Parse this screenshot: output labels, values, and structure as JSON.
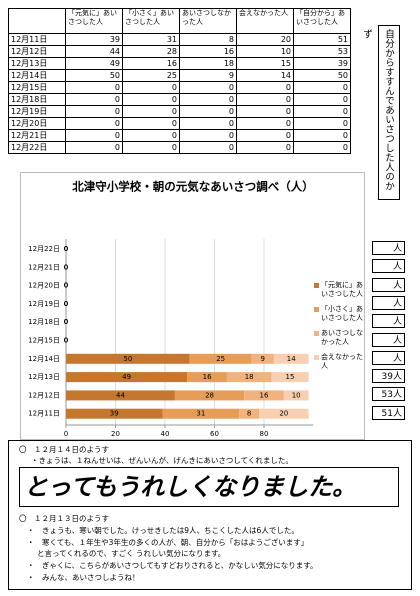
{
  "table": {
    "header": [
      "",
      "「元気に」あいさつした人",
      "「小さく」あいさつした人",
      "あいさつしなかった人",
      "会えなかった人",
      "「自分から」あいさつした人"
    ],
    "rows": [
      [
        "12月11日",
        39,
        31,
        8,
        20,
        51
      ],
      [
        "12月12日",
        44,
        28,
        16,
        10,
        53
      ],
      [
        "12月13日",
        49,
        16,
        18,
        15,
        39
      ],
      [
        "12月14日",
        50,
        25,
        9,
        14,
        50
      ],
      [
        "12月15日",
        0,
        0,
        0,
        0,
        0
      ],
      [
        "12月18日",
        0,
        0,
        0,
        0,
        0
      ],
      [
        "12月19日",
        0,
        0,
        0,
        0,
        0
      ],
      [
        "12月20日",
        0,
        0,
        0,
        0,
        0
      ],
      [
        "12月21日",
        0,
        0,
        0,
        0,
        0
      ],
      [
        "12月22日",
        0,
        0,
        0,
        0,
        0
      ]
    ]
  },
  "side_note": "自分からすすんであいさつした人のかず",
  "chart_data": {
    "type": "bar",
    "orientation": "horizontal",
    "stacked": true,
    "title": "北津守小学校・朝の元気なあいさつ調べ（人）",
    "categories": [
      "12月11日",
      "12月12日",
      "12月13日",
      "12月14日",
      "12月15日",
      "12月18日",
      "12月19日",
      "12月20日",
      "12月21日",
      "12月22日"
    ],
    "series": [
      {
        "name": "「元気に」あいさつした人",
        "color": "#c5772f",
        "values": [
          39,
          44,
          49,
          50,
          0,
          0,
          0,
          0,
          0,
          0
        ]
      },
      {
        "name": "「小さく」あいさつした人",
        "color": "#e69d58",
        "values": [
          31,
          28,
          16,
          25,
          0,
          0,
          0,
          0,
          0,
          0
        ]
      },
      {
        "name": "あいさつしなかった人",
        "color": "#f2b27e",
        "values": [
          8,
          16,
          18,
          9,
          0,
          0,
          0,
          0,
          0,
          0
        ]
      },
      {
        "name": "会えなかった人",
        "color": "#f8cfb0",
        "values": [
          20,
          10,
          15,
          14,
          0,
          0,
          0,
          0,
          0,
          0
        ]
      }
    ],
    "xlim": [
      0,
      100
    ],
    "xticks": [
      0,
      20,
      40,
      60,
      80
    ],
    "grid": true
  },
  "side_boxes": [
    "人",
    "人",
    "人",
    "人",
    "人",
    "人",
    "人",
    "39人",
    "53人",
    "51人"
  ],
  "report": {
    "day1_heading": "〇　１２月１４日のようす",
    "day1_line": "・きょうは、１ねんせいは、ぜんいんが、げんきにあいさつしてくれました。",
    "big_message": "とってもうれしくなりました。",
    "day2_heading": "〇　１２月１３日のようす",
    "day2_lines": [
      "・　きょうも、寒い朝でした。けっせきしたは9人、ちこくした人は6人でした。",
      "・　寒くても、１年生や3年生の多くの人が、朝、自分から「おはようございます」",
      "と言ってくれるので、すごく うれしい気分になります。",
      "・　ぎゃくに、こちらがあいさつしてもすどおりされると、かなしい気分になります。",
      "・　みんな、あいさつしようね！"
    ]
  }
}
